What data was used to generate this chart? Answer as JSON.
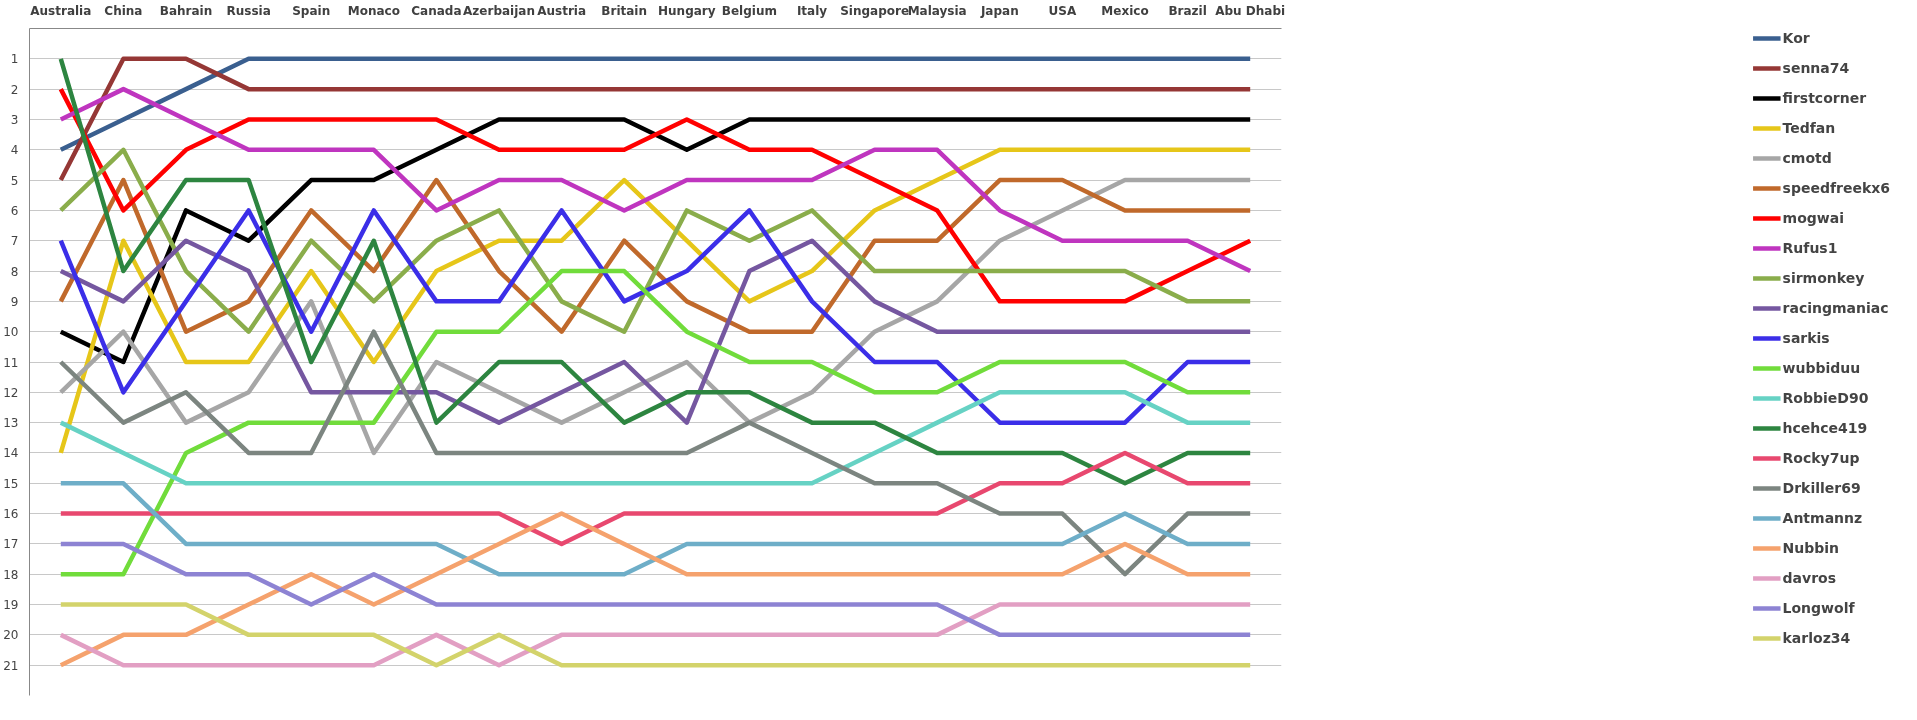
{
  "chart_data": {
    "type": "line",
    "categories": [
      "Australia",
      "China",
      "Bahrain",
      "Russia",
      "Spain",
      "Monaco",
      "Canada",
      "Azerbaijan",
      "Austria",
      "Britain",
      "Hungary",
      "Belgium",
      "Italy",
      "Singapore",
      "Malaysia",
      "Japan",
      "USA",
      "Mexico",
      "Brazil",
      "Abu Dhabi"
    ],
    "ylim": [
      22,
      0
    ],
    "yticks": [
      1,
      2,
      3,
      4,
      5,
      6,
      7,
      8,
      9,
      10,
      11,
      12,
      13,
      14,
      15,
      16,
      17,
      18,
      19,
      20,
      21
    ],
    "grid": "y",
    "legend": "right",
    "marker": "none",
    "line_style": "solid",
    "series": [
      {
        "name": "Kor",
        "color": "#3a5f8f",
        "values": [
          4,
          3,
          2,
          1,
          1,
          1,
          1,
          1,
          1,
          1,
          1,
          1,
          1,
          1,
          1,
          1,
          1,
          1,
          1,
          1
        ]
      },
      {
        "name": "senna74",
        "color": "#953735",
        "values": [
          5,
          1,
          1,
          2,
          2,
          2,
          2,
          2,
          2,
          2,
          2,
          2,
          2,
          2,
          2,
          2,
          2,
          2,
          2,
          2
        ]
      },
      {
        "name": "firstcorner",
        "color": "#000000",
        "values": [
          10,
          11,
          6,
          7,
          5,
          5,
          4,
          3,
          3,
          3,
          4,
          3,
          3,
          3,
          3,
          3,
          3,
          3,
          3,
          3
        ]
      },
      {
        "name": "Tedfan",
        "color": "#e6c619",
        "values": [
          14,
          7,
          11,
          11,
          8,
          11,
          8,
          7,
          7,
          5,
          7,
          9,
          8,
          6,
          5,
          4,
          4,
          4,
          4,
          4
        ]
      },
      {
        "name": "cmotd",
        "color": "#a6a6a6",
        "values": [
          12,
          10,
          13,
          12,
          9,
          14,
          11,
          12,
          13,
          12,
          11,
          13,
          12,
          10,
          9,
          7,
          6,
          5,
          5,
          5
        ]
      },
      {
        "name": "speedfreekx6",
        "color": "#c0692b",
        "values": [
          9,
          5,
          10,
          9,
          6,
          8,
          5,
          8,
          10,
          7,
          9,
          10,
          10,
          7,
          7,
          5,
          5,
          6,
          6,
          6
        ]
      },
      {
        "name": "mogwai",
        "color": "#ff0000",
        "values": [
          2,
          6,
          4,
          3,
          3,
          3,
          3,
          4,
          4,
          4,
          3,
          4,
          4,
          5,
          6,
          9,
          9,
          9,
          8,
          7
        ]
      },
      {
        "name": "Rufus1",
        "color": "#bf35bf",
        "values": [
          3,
          2,
          3,
          4,
          4,
          4,
          6,
          5,
          5,
          6,
          5,
          5,
          5,
          4,
          4,
          6,
          7,
          7,
          7,
          8
        ]
      },
      {
        "name": "sirmonkey",
        "color": "#8aad4b",
        "values": [
          6,
          4,
          8,
          10,
          7,
          9,
          7,
          6,
          9,
          10,
          6,
          7,
          6,
          8,
          8,
          8,
          8,
          8,
          9,
          9
        ]
      },
      {
        "name": "racingmaniac",
        "color": "#7557a0",
        "values": [
          8,
          9,
          7,
          8,
          12,
          12,
          12,
          13,
          12,
          11,
          13,
          8,
          7,
          9,
          10,
          10,
          10,
          10,
          10,
          10
        ]
      },
      {
        "name": "sarkis",
        "color": "#3b2ee8",
        "values": [
          7,
          12,
          9,
          6,
          10,
          6,
          9,
          9,
          6,
          9,
          8,
          6,
          9,
          11,
          11,
          13,
          13,
          13,
          11,
          11
        ]
      },
      {
        "name": "wubbiduu",
        "color": "#71dc3b",
        "values": [
          18,
          18,
          14,
          13,
          13,
          13,
          10,
          10,
          8,
          8,
          10,
          11,
          11,
          12,
          12,
          11,
          11,
          11,
          12,
          12
        ]
      },
      {
        "name": "RobbieD90",
        "color": "#66d2c4",
        "values": [
          13,
          14,
          15,
          15,
          15,
          15,
          15,
          15,
          15,
          15,
          15,
          15,
          15,
          14,
          13,
          12,
          12,
          12,
          13,
          13
        ]
      },
      {
        "name": "hcehce419",
        "color": "#2d8540",
        "values": [
          1,
          8,
          5,
          5,
          11,
          7,
          13,
          11,
          11,
          13,
          12,
          12,
          13,
          13,
          14,
          14,
          14,
          15,
          14,
          14
        ]
      },
      {
        "name": "Rocky7up",
        "color": "#e8486f",
        "values": [
          16,
          16,
          16,
          16,
          16,
          16,
          16,
          16,
          17,
          16,
          16,
          16,
          16,
          16,
          16,
          15,
          15,
          14,
          15,
          15
        ]
      },
      {
        "name": "Drkiller69",
        "color": "#7c8580",
        "values": [
          11,
          13,
          12,
          14,
          14,
          10,
          14,
          14,
          14,
          14,
          14,
          13,
          14,
          15,
          15,
          16,
          16,
          18,
          16,
          16
        ]
      },
      {
        "name": "Antmannz",
        "color": "#6eaec8",
        "values": [
          15,
          15,
          17,
          17,
          17,
          17,
          17,
          18,
          18,
          18,
          17,
          17,
          17,
          17,
          17,
          17,
          17,
          16,
          17,
          17
        ]
      },
      {
        "name": "Nubbin",
        "color": "#f5a26d",
        "values": [
          21,
          20,
          20,
          19,
          18,
          19,
          18,
          17,
          16,
          17,
          18,
          18,
          18,
          18,
          18,
          18,
          18,
          17,
          18,
          18
        ]
      },
      {
        "name": "davros",
        "color": "#e29fc3",
        "values": [
          20,
          21,
          21,
          21,
          21,
          21,
          20,
          21,
          20,
          20,
          20,
          20,
          20,
          20,
          20,
          19,
          19,
          19,
          19,
          19
        ]
      },
      {
        "name": "Longwolf",
        "color": "#8d83d3",
        "values": [
          17,
          17,
          18,
          18,
          19,
          18,
          19,
          19,
          19,
          19,
          19,
          19,
          19,
          19,
          19,
          20,
          20,
          20,
          20,
          20
        ]
      },
      {
        "name": "karloz34",
        "color": "#d3d36b",
        "values": [
          19,
          19,
          19,
          20,
          20,
          20,
          21,
          20,
          21,
          21,
          21,
          21,
          21,
          21,
          21,
          21,
          21,
          21,
          21,
          21
        ]
      }
    ]
  }
}
